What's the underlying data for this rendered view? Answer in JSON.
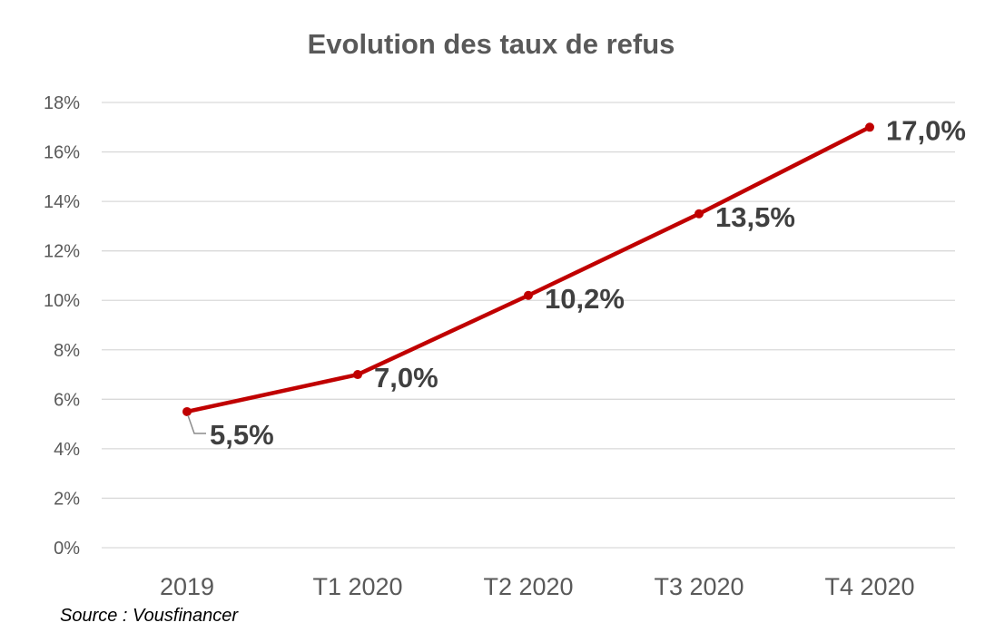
{
  "chart_data": {
    "type": "line",
    "title": "Evolution des taux de refus",
    "categories": [
      "2019",
      "T1 2020",
      "T2 2020",
      "T3 2020",
      "T4 2020"
    ],
    "series": [
      {
        "values": [
          5.5,
          7.0,
          10.2,
          13.5,
          17.0
        ],
        "data_labels": [
          "5,5%",
          "7,0%",
          "10,2%",
          "13,5%",
          "17,0%"
        ],
        "color": "#c00000"
      }
    ],
    "y_ticks": [
      "0%",
      "2%",
      "4%",
      "6%",
      "8%",
      "10%",
      "12%",
      "14%",
      "16%",
      "18%"
    ],
    "ylim": [
      0,
      18
    ],
    "y_unit": "%",
    "xlabel": "",
    "ylabel": "",
    "grid": true,
    "legend": "none"
  },
  "source": "Source : Vousfinancer",
  "colors": {
    "series": "#c00000",
    "grid": "#d9d9d9",
    "text": "#595959",
    "data_label": "#404040"
  }
}
